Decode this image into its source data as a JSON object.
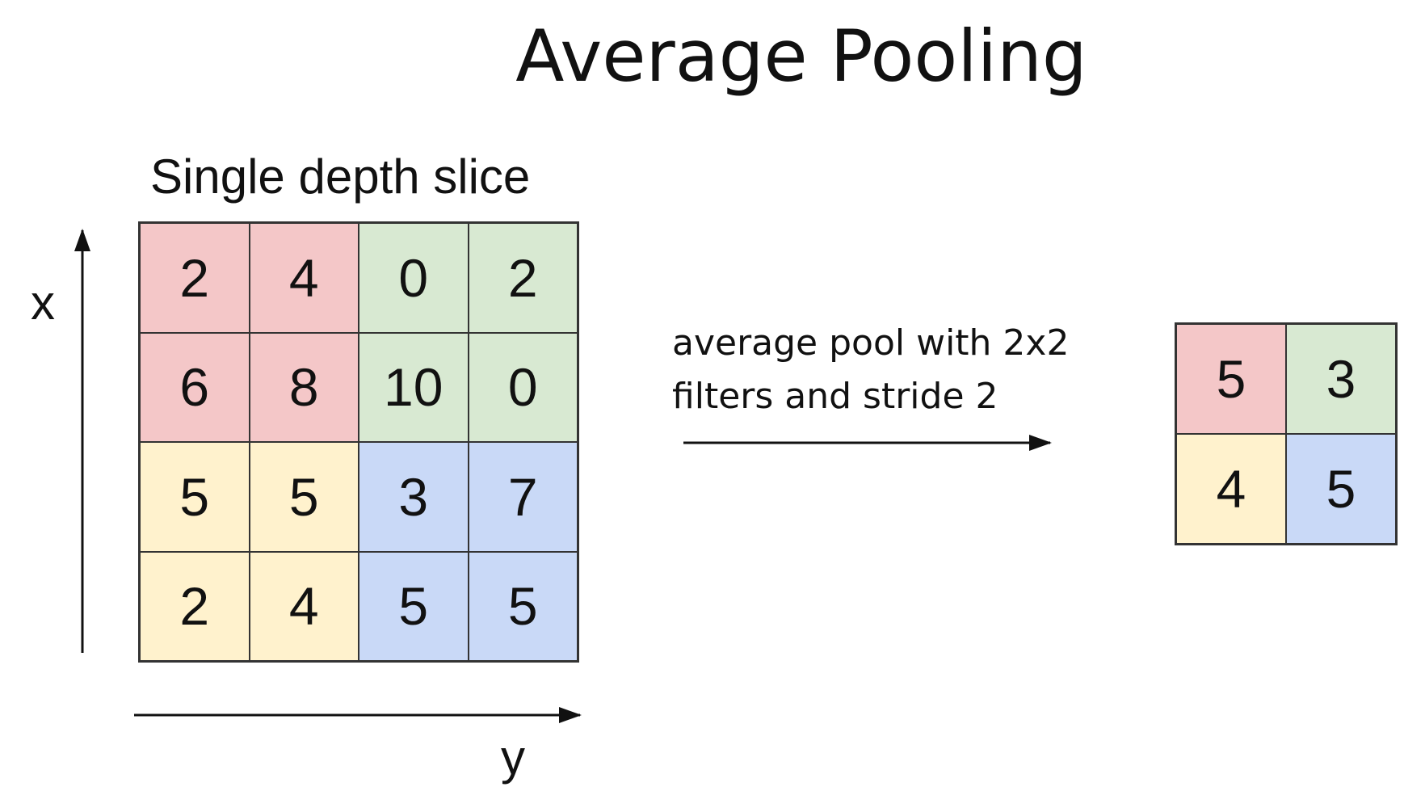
{
  "title": "Average Pooling",
  "subtitle": "Single depth slice",
  "axes": {
    "x": "x",
    "y": "y"
  },
  "operation": {
    "line1": "average pool with 2x2",
    "line2": "filters and stride 2"
  },
  "colors": {
    "red": "#f4c7c8",
    "green": "#d8e9d2",
    "yellow": "#fff2cd",
    "blue": "#c9d9f7"
  },
  "input_matrix": [
    [
      2,
      4,
      0,
      2
    ],
    [
      6,
      8,
      10,
      0
    ],
    [
      5,
      5,
      3,
      7
    ],
    [
      2,
      4,
      5,
      5
    ]
  ],
  "input_colors": [
    [
      "red",
      "red",
      "green",
      "green"
    ],
    [
      "red",
      "red",
      "green",
      "green"
    ],
    [
      "yellow",
      "yellow",
      "blue",
      "blue"
    ],
    [
      "yellow",
      "yellow",
      "blue",
      "blue"
    ]
  ],
  "output_matrix": [
    [
      5,
      3
    ],
    [
      4,
      5
    ]
  ],
  "output_colors": [
    [
      "red",
      "green"
    ],
    [
      "yellow",
      "blue"
    ]
  ]
}
